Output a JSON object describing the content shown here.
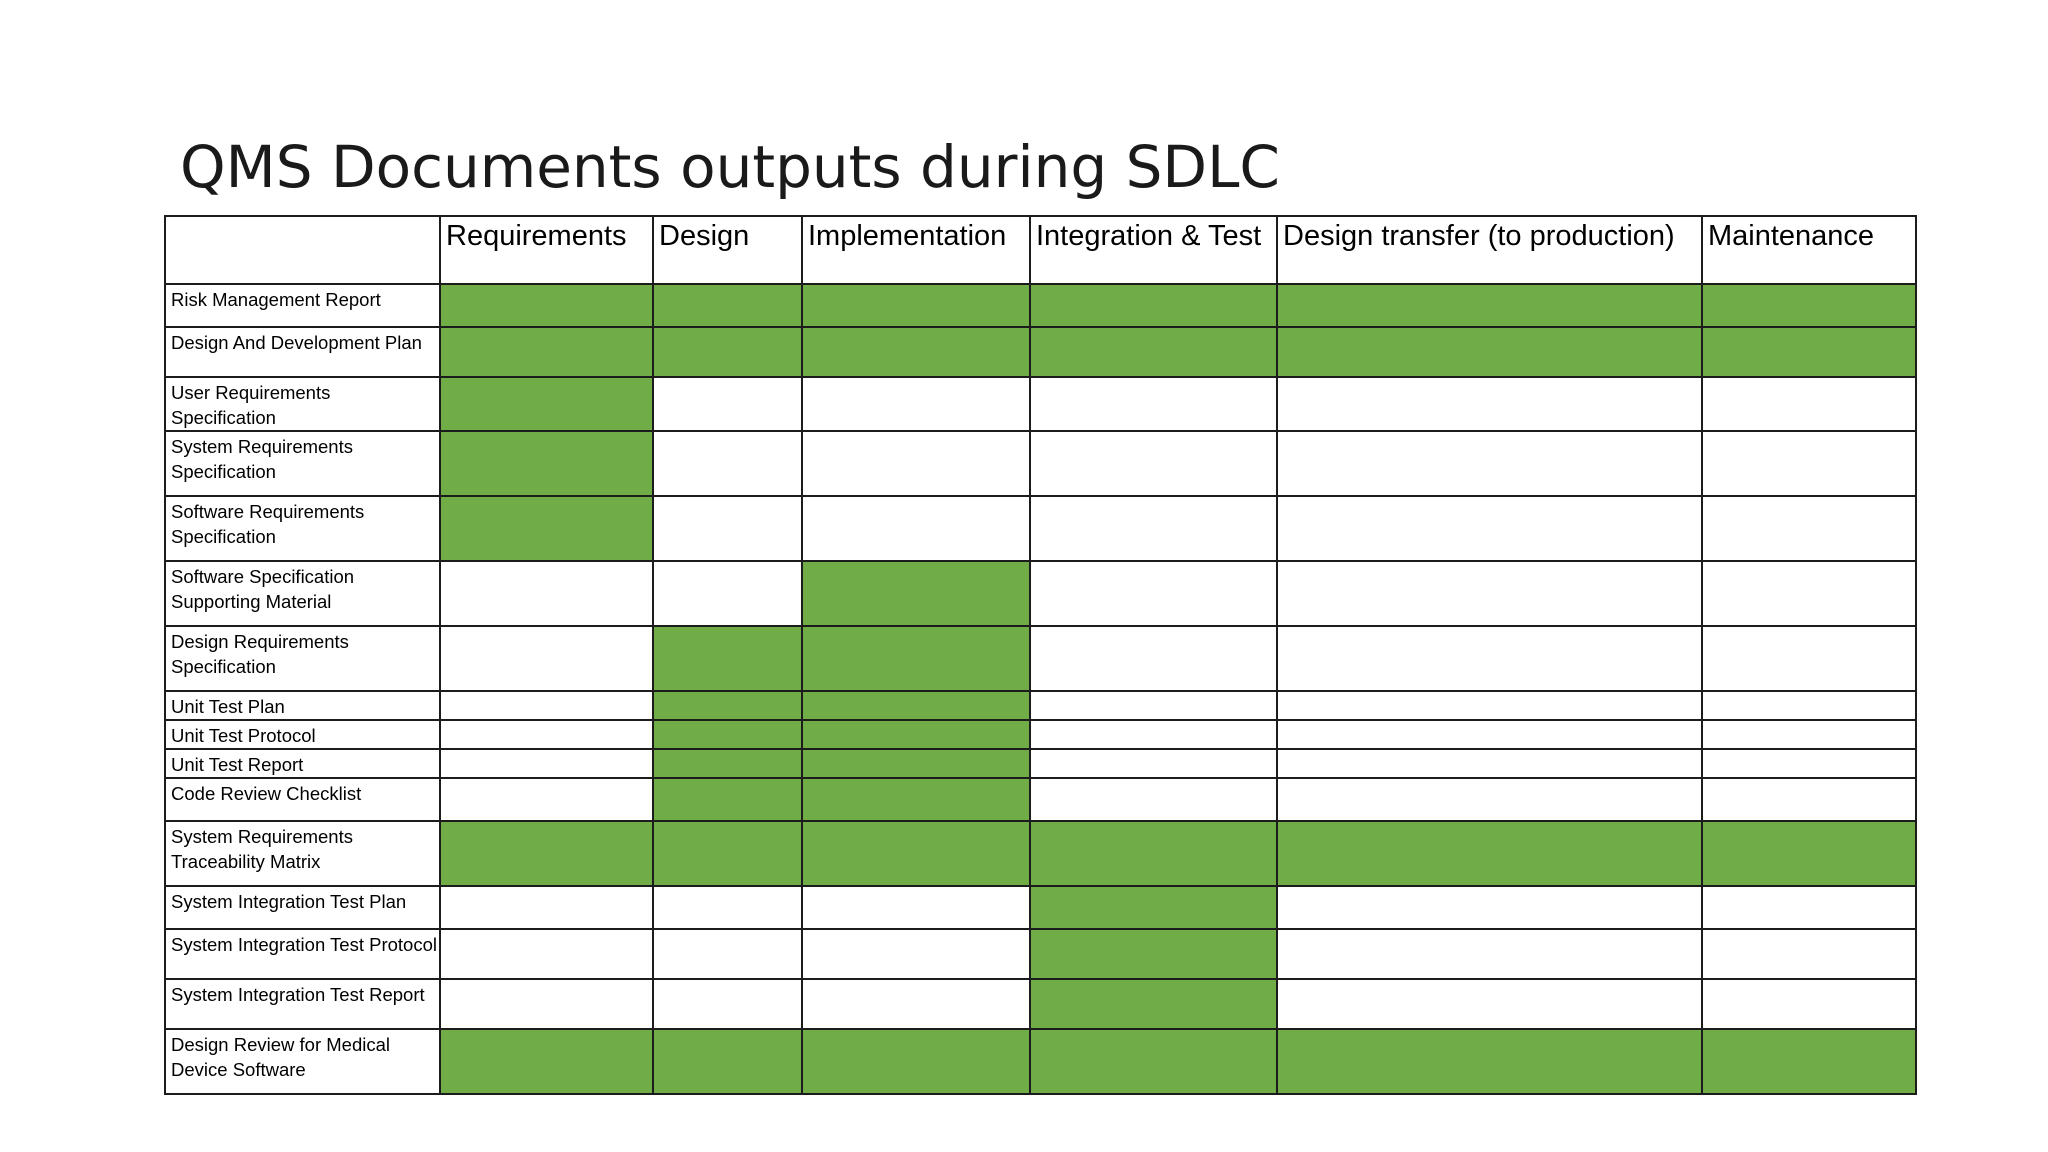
{
  "title": "QMS Documents outputs during SDLC",
  "colors": {
    "active": "#70ad47",
    "inactive": "#ffffff"
  },
  "phases": [
    "Requirements",
    "Design",
    "Implementation",
    "Integration & Test",
    "Design transfer (to production)",
    "Maintenance"
  ],
  "rows": [
    {
      "label": "Risk Management Report",
      "active": [
        true,
        true,
        true,
        true,
        true,
        true
      ]
    },
    {
      "label": "Design And Development Plan",
      "active": [
        true,
        true,
        true,
        true,
        true,
        true
      ]
    },
    {
      "label": "User Requirements Specification",
      "active": [
        true,
        false,
        false,
        false,
        false,
        false
      ]
    },
    {
      "label": "System Requirements Specification",
      "active": [
        true,
        false,
        false,
        false,
        false,
        false
      ]
    },
    {
      "label": "Software Requirements Specification",
      "active": [
        true,
        false,
        false,
        false,
        false,
        false
      ]
    },
    {
      "label": "Software Specification Supporting Material",
      "active": [
        false,
        false,
        true,
        false,
        false,
        false
      ]
    },
    {
      "label": "Design Requirements Specification",
      "active": [
        false,
        true,
        true,
        false,
        false,
        false
      ]
    },
    {
      "label": "Unit Test Plan",
      "active": [
        false,
        true,
        true,
        false,
        false,
        false
      ]
    },
    {
      "label": "Unit Test Protocol",
      "active": [
        false,
        true,
        true,
        false,
        false,
        false
      ]
    },
    {
      "label": "Unit Test Report",
      "active": [
        false,
        true,
        true,
        false,
        false,
        false
      ]
    },
    {
      "label": "Code Review Checklist",
      "active": [
        false,
        true,
        true,
        false,
        false,
        false
      ]
    },
    {
      "label": "System Requirements Traceability Matrix",
      "active": [
        true,
        true,
        true,
        true,
        true,
        true
      ]
    },
    {
      "label": "System Integration Test Plan",
      "active": [
        false,
        false,
        false,
        true,
        false,
        false
      ]
    },
    {
      "label": "System Integration Test Protocol",
      "active": [
        false,
        false,
        false,
        true,
        false,
        false
      ]
    },
    {
      "label": "System Integration Test Report",
      "active": [
        false,
        false,
        false,
        true,
        false,
        false
      ]
    },
    {
      "label": "Design Review for Medical Device Software",
      "active": [
        true,
        true,
        true,
        true,
        true,
        true
      ]
    }
  ]
}
